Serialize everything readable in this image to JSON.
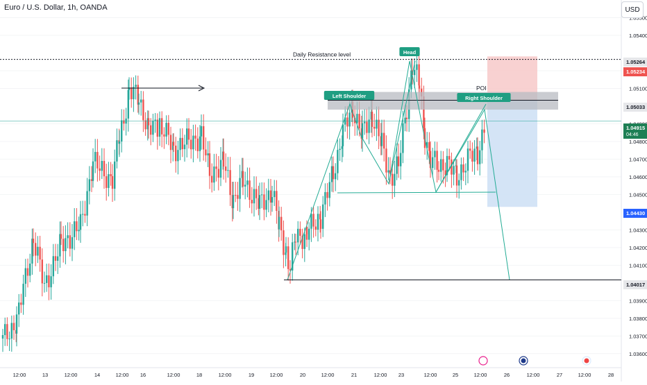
{
  "header": {
    "symbol_title": "Euro / U.S. Dollar, 1h, OANDA",
    "currency": "USD"
  },
  "chart_data": {
    "type": "candlestick",
    "symbol": "Euro / U.S. Dollar",
    "timeframe": "1h",
    "source": "OANDA",
    "x_tick_labels": [
      "12:00",
      "13",
      "12:00",
      "14",
      "12:00",
      "16",
      "12:00",
      "18",
      "12:00",
      "19",
      "12:00",
      "20",
      "12:00",
      "21",
      "12:00",
      "23",
      "12:00",
      "25",
      "12:00",
      "26",
      "12:00",
      "27",
      "12:00",
      "28"
    ],
    "y_tick_labels": [
      "1.05500",
      "1.05400",
      "1.05200",
      "1.05100",
      "1.04900",
      "1.04800",
      "1.04700",
      "1.04600",
      "1.04500",
      "1.04300",
      "1.04200",
      "1.04100",
      "1.03900",
      "1.03800",
      "1.03700",
      "1.03600"
    ],
    "ylim": [
      1.0356,
      1.056
    ],
    "price_tags": [
      {
        "label": "1.05264",
        "style": "neutral"
      },
      {
        "label": "1.05234",
        "style": "stop"
      },
      {
        "label": "1.05033",
        "style": "neutral"
      },
      {
        "label": "1.04915",
        "style": "current",
        "sublabel": "04:46"
      },
      {
        "label": "1.04430",
        "style": "target-blue"
      },
      {
        "label": "1.04017",
        "style": "neutral"
      }
    ],
    "current_price": 1.04915,
    "annotations": {
      "resistance_label": "Daily Resistance level",
      "resistance_price": 1.05264,
      "head": "Head",
      "left_shoulder": "Left Shoulder",
      "right_shoulder": "Right Shoulder",
      "poi": "POI",
      "poi_zone": [
        1.0498,
        1.0508
      ],
      "neckline_price": 1.0456,
      "target_price": 1.04017
    },
    "short_position": {
      "entry": 1.05033,
      "stop": 1.05234,
      "target": 1.0443
    },
    "colors": {
      "up": "#26a69a",
      "down": "#ef5350",
      "pattern": "#22ab94",
      "stop_zone": "#f7c9c9",
      "target_zone": "#cfe1f5",
      "current": "#1e7f55",
      "target_tag": "#2962ff"
    },
    "event_icons": [
      "lightning-icon",
      "circle-event-icon",
      "us-flag-icon"
    ]
  }
}
